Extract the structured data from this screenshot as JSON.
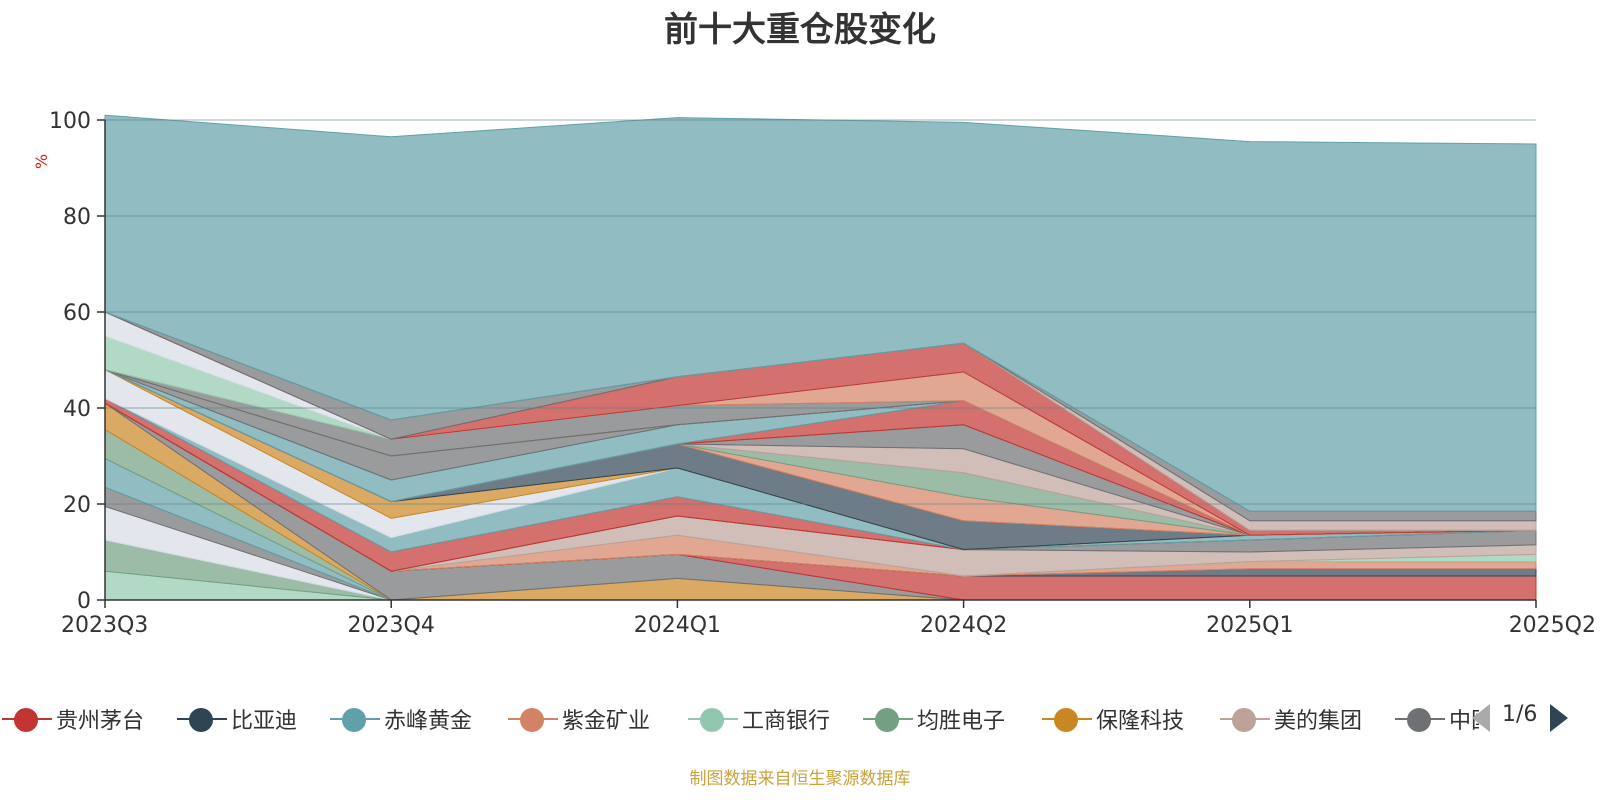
{
  "title": "前十大重仓股变化",
  "unit": "%",
  "footer": "制图数据来自恒生聚源数据库",
  "legend": {
    "items": [
      {
        "label": "贵州茅台",
        "color": "#c23531"
      },
      {
        "label": "比亚迪",
        "color": "#2f4554"
      },
      {
        "label": "赤峰黄金",
        "color": "#61a0a8"
      },
      {
        "label": "紫金矿业",
        "color": "#d48265"
      },
      {
        "label": "工商银行",
        "color": "#91c7ae"
      },
      {
        "label": "均胜电子",
        "color": "#749f83"
      },
      {
        "label": "保隆科技",
        "color": "#ca8622"
      },
      {
        "label": "美的集团",
        "color": "#bda29a"
      },
      {
        "label": "中国",
        "color": "#6e7074"
      }
    ],
    "page": "1/6"
  },
  "chart_data": {
    "type": "area",
    "stacked": true,
    "title": "前十大重仓股变化",
    "ylabel": "%",
    "x": [
      "2023Q3",
      "2023Q4",
      "2024Q1",
      "2024Q2",
      "2025Q1",
      "2025Q2"
    ],
    "ylim": [
      0,
      100
    ],
    "yticks": [
      0,
      20,
      40,
      60,
      80,
      100
    ],
    "grid": true,
    "legend_position": "bottom",
    "series": [
      {
        "name": "",
        "color": "#91c7ae",
        "values": [
          6,
          0,
          0,
          0,
          0,
          0
        ]
      },
      {
        "name": "",
        "color": "#749f83",
        "values": [
          6.5,
          0,
          0,
          0,
          0,
          0
        ]
      },
      {
        "name": "",
        "color": "#d7dde6",
        "values": [
          7,
          0,
          0,
          0,
          0,
          0
        ]
      },
      {
        "name": "",
        "color": "#6e7074",
        "values": [
          4,
          0,
          0,
          0,
          0,
          0
        ]
      },
      {
        "name": "",
        "color": "#61a0a8",
        "values": [
          6,
          0,
          0,
          0,
          0,
          0
        ]
      },
      {
        "name": "",
        "color": "#749f83",
        "values": [
          6,
          0,
          0,
          0,
          0,
          0
        ]
      },
      {
        "name": "",
        "color": "#ca8622",
        "values": [
          5.5,
          0,
          4.5,
          0,
          0,
          0
        ]
      },
      {
        "name": "",
        "color": "#6e7074",
        "values": [
          0,
          6,
          5,
          0,
          0,
          0
        ]
      },
      {
        "name": "贵州茅台",
        "color": "#c23531",
        "values": [
          0,
          0,
          0,
          5,
          5,
          5
        ]
      },
      {
        "name": "比亚迪",
        "color": "#2f4554",
        "values": [
          0,
          0,
          0,
          0,
          1.5,
          1.5
        ]
      },
      {
        "name": "紫金矿业",
        "color": "#d48265",
        "values": [
          0,
          0,
          4,
          0,
          1.5,
          1.5
        ]
      },
      {
        "name": "工商银行",
        "color": "#91c7ae",
        "values": [
          0,
          0,
          0,
          0,
          0,
          1.5
        ]
      },
      {
        "name": "美的集团",
        "color": "#bda29a",
        "values": [
          0,
          0,
          4,
          5.5,
          2,
          2
        ]
      },
      {
        "name": "",
        "color": "#6e7074",
        "values": [
          0,
          0,
          0,
          0,
          2.5,
          3
        ]
      },
      {
        "name": "",
        "color": "#c23531",
        "values": [
          1,
          4,
          4,
          0,
          0,
          0
        ]
      },
      {
        "name": "",
        "color": "#61a0a8",
        "values": [
          0,
          3,
          6,
          0,
          1,
          0
        ]
      },
      {
        "name": "",
        "color": "#d7dde6",
        "values": [
          6,
          4,
          0,
          0,
          0,
          0
        ]
      },
      {
        "name": "",
        "color": "#ca8622",
        "values": [
          0,
          3.5,
          0,
          0,
          0,
          0
        ]
      },
      {
        "name": "",
        "color": "#2f4554",
        "values": [
          0,
          0,
          5,
          6,
          0,
          0
        ]
      },
      {
        "name": "",
        "color": "#d48265",
        "values": [
          0,
          0,
          0,
          5,
          0,
          0
        ]
      },
      {
        "name": "",
        "color": "#749f83",
        "values": [
          0,
          0,
          0,
          5,
          0,
          0
        ]
      },
      {
        "name": "",
        "color": "#bda29a",
        "values": [
          0,
          0,
          0,
          5,
          0,
          0
        ]
      },
      {
        "name": "",
        "color": "#6e7074",
        "values": [
          0,
          0,
          0,
          5,
          0,
          0
        ]
      },
      {
        "name": "",
        "color": "#c23531",
        "values": [
          0,
          0,
          0,
          5,
          0,
          0
        ]
      },
      {
        "name": "",
        "color": "#61a0a8",
        "values": [
          0,
          4.5,
          4,
          0,
          0,
          0
        ]
      },
      {
        "name": "",
        "color": "#6e7074",
        "values": [
          0,
          5,
          0,
          0,
          0,
          0
        ]
      },
      {
        "name": "",
        "color": "#ca8622",
        "values": [
          0,
          0,
          0,
          0,
          0,
          0
        ]
      },
      {
        "name": "",
        "color": "#6e7074",
        "values": [
          0,
          3.5,
          4,
          0,
          0,
          0
        ]
      },
      {
        "name": "",
        "color": "#d48265",
        "values": [
          0,
          0,
          0,
          6,
          0,
          0
        ]
      },
      {
        "name": "",
        "color": "#91c7ae",
        "values": [
          7,
          0,
          0,
          0,
          0,
          0
        ]
      },
      {
        "name": "",
        "color": "#d7dde6",
        "values": [
          5,
          0,
          0,
          0,
          0,
          0
        ]
      },
      {
        "name": "",
        "color": "#c23531",
        "values": [
          0,
          0,
          6,
          6,
          1,
          0
        ]
      },
      {
        "name": "",
        "color": "#6e7074",
        "values": [
          0,
          4,
          0,
          0,
          0,
          0
        ]
      },
      {
        "name": "",
        "color": "#bda29a",
        "values": [
          0,
          0,
          0,
          0,
          2,
          2
        ]
      },
      {
        "name": "",
        "color": "#6e7074",
        "values": [
          0,
          0,
          0,
          0,
          2,
          2
        ]
      },
      {
        "name": "",
        "color": "#61a0a8",
        "values": [
          41,
          59,
          54,
          46,
          77,
          76.5
        ]
      }
    ]
  }
}
